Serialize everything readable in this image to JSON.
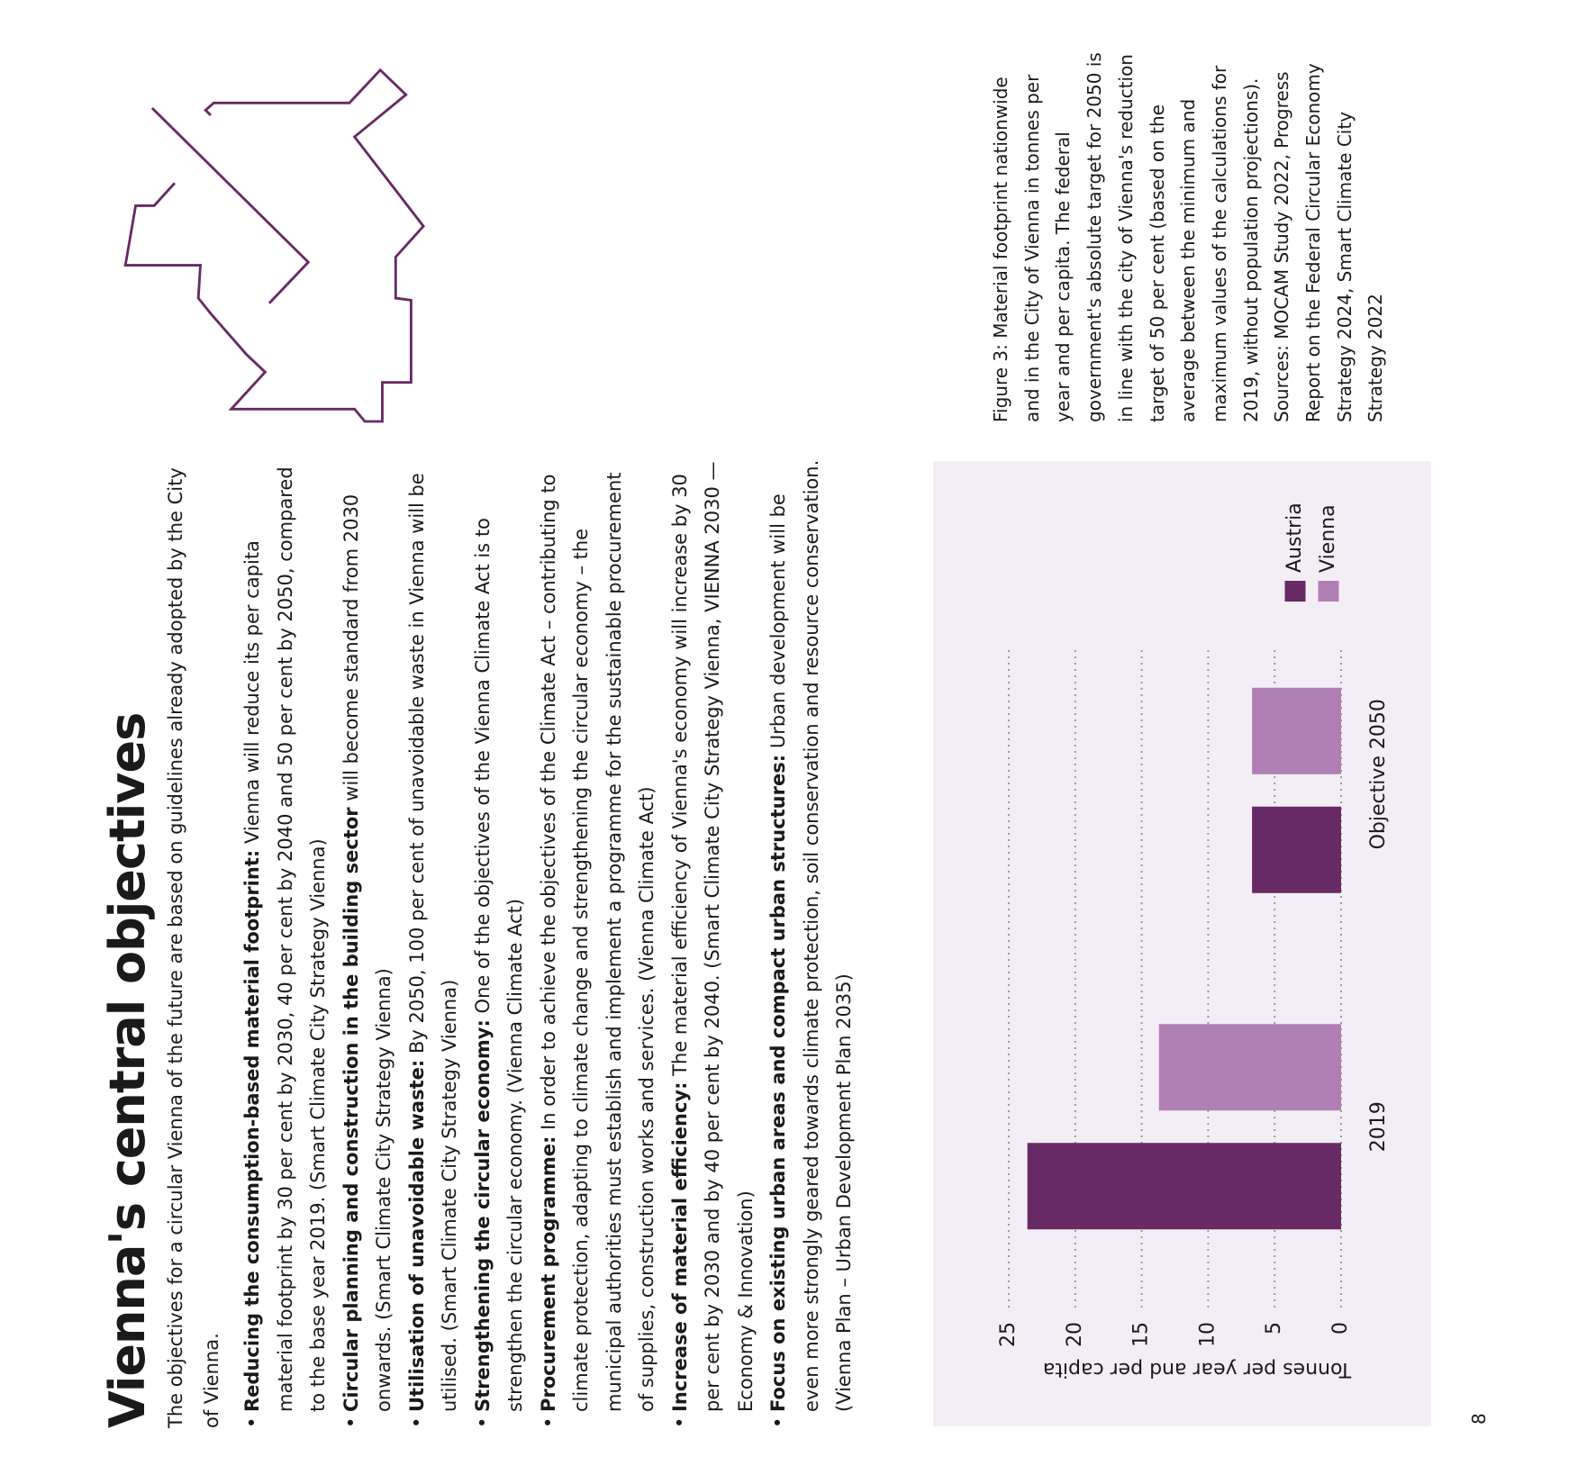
{
  "title": "Vienna's central objectives",
  "intro": "The objectives for a circular Vienna of the future are based on guidelines already adopted by the City of Vienna.",
  "bullets": [
    {
      "lead": "Reducing the consumption-based material footprint:",
      "text": "Vienna will reduce its per capita material footprint by 30 per cent by 2030, 40 per cent by 2040 and 50 per cent by 2050, compared to the base year 2019. (Smart Climate City Strategy Vienna)"
    },
    {
      "lead": "Circular planning and construction in the building sector",
      "text": "will become standard from 2030 onwards. (Smart Climate City Strategy Vienna)"
    },
    {
      "lead": "Utilisation of unavoidable waste:",
      "text": "By 2050, 100 per cent of unavoidable waste in Vienna will be utilised. (Smart Climate City Strategy Vienna)"
    },
    {
      "lead": "Strengthening the circular economy:",
      "text": "One of the objectives of the Vienna Climate Act is to strengthen the circular economy. (Vienna Climate Act)"
    },
    {
      "lead": "Procurement programme:",
      "text": "In order to achieve the objectives of the Climate Act – contributing to climate protection, adapting to climate change and strengthening the circular economy – the municipal authorities must establish and implement a programme for the sustainable procurement of supplies, construction works and services. (Vienna Climate Act)"
    },
    {
      "lead": "Increase of material efficiency:",
      "text": "The material efficiency of Vienna's economy will increase by 30 per cent by 2030 and by 40 per cent by 2040. (Smart Climate City Strategy Vienna, VIENNA 2030 — Economy & Innovation)"
    },
    {
      "lead": "Focus on existing urban areas and compact urban structures:",
      "text": "Urban development will be even more strongly geared towards climate protection, soil conservation and resource conservation. (Vienna Plan – Urban Development Plan 2035)"
    }
  ],
  "figure": {
    "caption": "Figure 3: Material footprint nationwide and in the City of Vienna in tonnes per year and per capita. The federal government's absolute target for 2050 is in line with the city of Vienna's reduction target of 50 per cent (based on the average between the minimum and maximum values of the calculations for 2019, without population projections). Sources: MOCAM Study 2022, Progress Report on the Federal Circular Economy Strategy 2024, Smart Climate City Strategy 2022"
  },
  "chart_data": {
    "type": "bar",
    "y_label": "Tonnes per year and per capita",
    "categories": [
      "2019",
      "Objective 2050"
    ],
    "series": [
      {
        "name": "Austria",
        "color": "#672a64",
        "values": [
          23.6,
          6.7
        ]
      },
      {
        "name": "Vienna",
        "color": "#b07fb4",
        "values": [
          13.7,
          6.7
        ]
      }
    ],
    "ylim": [
      0,
      25
    ],
    "yticks": [
      0,
      5,
      10,
      15,
      20,
      25
    ],
    "grid": true,
    "legend": "right"
  },
  "page_number": "8"
}
